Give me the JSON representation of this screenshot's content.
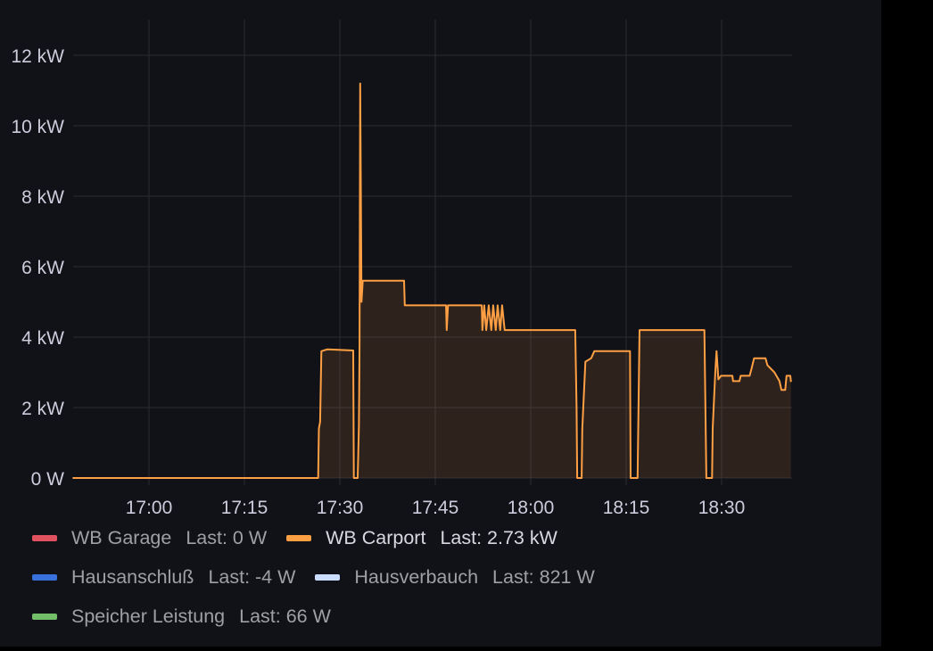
{
  "chart_data": {
    "type": "area",
    "title": "",
    "xlabel": "",
    "ylabel": "",
    "x_unit": "minutes since 17:00",
    "xlim": [
      -12,
      101
    ],
    "ylim": [
      0,
      12.5
    ],
    "y_unit": "kW",
    "grid": true,
    "legend_position": "bottom",
    "y_ticks": [
      {
        "value": 0,
        "label": "0 W"
      },
      {
        "value": 2,
        "label": "2 kW"
      },
      {
        "value": 4,
        "label": "4 kW"
      },
      {
        "value": 6,
        "label": "6 kW"
      },
      {
        "value": 8,
        "label": "8 kW"
      },
      {
        "value": 10,
        "label": "10 kW"
      },
      {
        "value": 12,
        "label": "12 kW"
      }
    ],
    "x_ticks": [
      {
        "value": 0,
        "label": "17:00"
      },
      {
        "value": 15,
        "label": "17:15"
      },
      {
        "value": 30,
        "label": "17:30"
      },
      {
        "value": 45,
        "label": "17:45"
      },
      {
        "value": 60,
        "label": "18:00"
      },
      {
        "value": 75,
        "label": "18:15"
      },
      {
        "value": 90,
        "label": "18:30"
      }
    ],
    "series": [
      {
        "name": "WB Garage",
        "last": "Last: 0 W",
        "color": "#e0525f",
        "points": []
      },
      {
        "name": "WB Carport",
        "last": "Last: 2.73 kW",
        "color": "#ff9f43",
        "highlight": true,
        "points": [
          [
            -12,
            0
          ],
          [
            26.6,
            0
          ],
          [
            26.7,
            1.4
          ],
          [
            26.9,
            1.6
          ],
          [
            27.1,
            3.6
          ],
          [
            28,
            3.65
          ],
          [
            32.1,
            3.62
          ],
          [
            32.2,
            0
          ],
          [
            32.8,
            0
          ],
          [
            33.0,
            1.5
          ],
          [
            33.1,
            3.8
          ],
          [
            33.2,
            11.2
          ],
          [
            33.3,
            8.4
          ],
          [
            33.4,
            5.0
          ],
          [
            33.6,
            5.6
          ],
          [
            40.1,
            5.6
          ],
          [
            40.2,
            4.9
          ],
          [
            46.7,
            4.9
          ],
          [
            46.8,
            4.2
          ],
          [
            47.0,
            4.9
          ],
          [
            52.3,
            4.9
          ],
          [
            52.4,
            4.2
          ],
          [
            52.7,
            4.9
          ],
          [
            53.0,
            4.2
          ],
          [
            53.4,
            4.9
          ],
          [
            53.8,
            4.2
          ],
          [
            54.1,
            4.9
          ],
          [
            54.5,
            4.2
          ],
          [
            54.8,
            4.9
          ],
          [
            55.2,
            4.2
          ],
          [
            55.5,
            4.9
          ],
          [
            55.9,
            4.2
          ],
          [
            67.0,
            4.2
          ],
          [
            67.2,
            2.0
          ],
          [
            67.3,
            0
          ],
          [
            68.0,
            0
          ],
          [
            68.1,
            1.4
          ],
          [
            68.6,
            3.3
          ],
          [
            69.5,
            3.4
          ],
          [
            70.0,
            3.6
          ],
          [
            75.6,
            3.6
          ],
          [
            75.7,
            0
          ],
          [
            76.8,
            0
          ],
          [
            77.1,
            4.2
          ],
          [
            87.3,
            4.2
          ],
          [
            87.6,
            0
          ],
          [
            88.5,
            0
          ],
          [
            88.6,
            1.4
          ],
          [
            89.0,
            3.0
          ],
          [
            89.2,
            3.6
          ],
          [
            89.5,
            2.8
          ],
          [
            89.9,
            2.9
          ],
          [
            91.7,
            2.9
          ],
          [
            91.8,
            2.75
          ],
          [
            92.8,
            2.75
          ],
          [
            93.0,
            2.9
          ],
          [
            94.4,
            2.9
          ],
          [
            94.7,
            3.1
          ],
          [
            95.1,
            3.4
          ],
          [
            96.9,
            3.4
          ],
          [
            97.2,
            3.2
          ],
          [
            98.3,
            3.0
          ],
          [
            99.1,
            2.75
          ],
          [
            99.4,
            2.5
          ],
          [
            100.0,
            2.5
          ],
          [
            100.2,
            2.9
          ],
          [
            100.8,
            2.9
          ],
          [
            100.9,
            2.73
          ]
        ]
      },
      {
        "name": "Hausanschluß",
        "last": "Last: -4 W",
        "color": "#3871dc",
        "points": []
      },
      {
        "name": "Hausverbauch",
        "last": "Last: 821 W",
        "color": "#cadcff",
        "points": []
      },
      {
        "name": "Speicher Leistung",
        "last": "Last: 66 W",
        "color": "#73bf69",
        "points": []
      }
    ]
  }
}
